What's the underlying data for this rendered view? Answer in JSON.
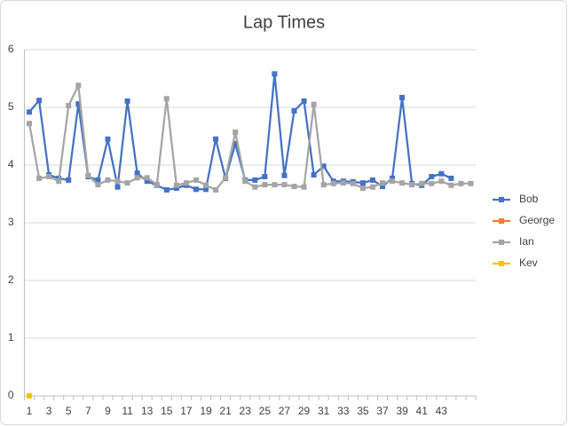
{
  "chart_data": {
    "type": "line",
    "title": "Lap Times",
    "categories": [
      1,
      null,
      3,
      null,
      5,
      null,
      7,
      null,
      9,
      null,
      11,
      null,
      13,
      null,
      15,
      null,
      17,
      null,
      19,
      null,
      21,
      null,
      23,
      null,
      25,
      null,
      27,
      null,
      29,
      null,
      31,
      null,
      33,
      null,
      35,
      null,
      37,
      null,
      39,
      null,
      41,
      null,
      43,
      null,
      null,
      null
    ],
    "series": [
      {
        "name": "Bob",
        "color": "#4472c4",
        "values": [
          4.92,
          5.12,
          3.83,
          3.77,
          3.74,
          5.06,
          3.8,
          3.74,
          4.45,
          3.62,
          5.11,
          3.86,
          3.72,
          3.65,
          3.57,
          3.6,
          3.65,
          3.58,
          3.58,
          4.45,
          3.77,
          4.37,
          3.74,
          3.74,
          3.8,
          5.58,
          3.82,
          4.94,
          5.11,
          3.83,
          3.98,
          3.72,
          3.72,
          3.71,
          3.69,
          3.74,
          3.63,
          3.77,
          5.17,
          3.68,
          3.65,
          3.8,
          3.85,
          3.77,
          null,
          null
        ]
      },
      {
        "name": "George",
        "color": "#ed7d31",
        "values": [
          0,
          null,
          null,
          null,
          null,
          null,
          null,
          null,
          null,
          null,
          null,
          null,
          null,
          null,
          null,
          null,
          null,
          null,
          null,
          null,
          null,
          null,
          null,
          null,
          null,
          null,
          null,
          null,
          null,
          null,
          null,
          null,
          null,
          null,
          null,
          null,
          null,
          null,
          null,
          null,
          null,
          null,
          null,
          null,
          null,
          null
        ]
      },
      {
        "name": "Ian",
        "color": "#a5a5a5",
        "values": [
          4.72,
          3.77,
          3.8,
          3.72,
          5.03,
          5.38,
          3.82,
          3.66,
          3.74,
          3.72,
          3.69,
          3.78,
          3.78,
          3.66,
          5.15,
          3.65,
          3.69,
          3.74,
          3.65,
          3.57,
          3.78,
          4.57,
          3.72,
          3.62,
          3.66,
          3.66,
          3.66,
          3.63,
          3.62,
          5.05,
          3.66,
          3.68,
          3.69,
          3.68,
          3.6,
          3.62,
          3.69,
          3.72,
          3.69,
          3.66,
          3.68,
          3.68,
          3.72,
          3.65,
          3.68,
          3.68
        ]
      },
      {
        "name": "Kev",
        "color": "#ffc000",
        "values": [
          0,
          null,
          null,
          null,
          null,
          null,
          null,
          null,
          null,
          null,
          null,
          null,
          null,
          null,
          null,
          null,
          null,
          null,
          null,
          null,
          null,
          null,
          null,
          null,
          null,
          null,
          null,
          null,
          null,
          null,
          null,
          null,
          null,
          null,
          null,
          null,
          null,
          null,
          null,
          null,
          null,
          null,
          null,
          null,
          null,
          null
        ]
      }
    ],
    "ylim": [
      0,
      6
    ],
    "yticks": [
      0,
      1,
      2,
      3,
      4,
      5,
      6
    ],
    "grid": true,
    "legend": "right"
  }
}
